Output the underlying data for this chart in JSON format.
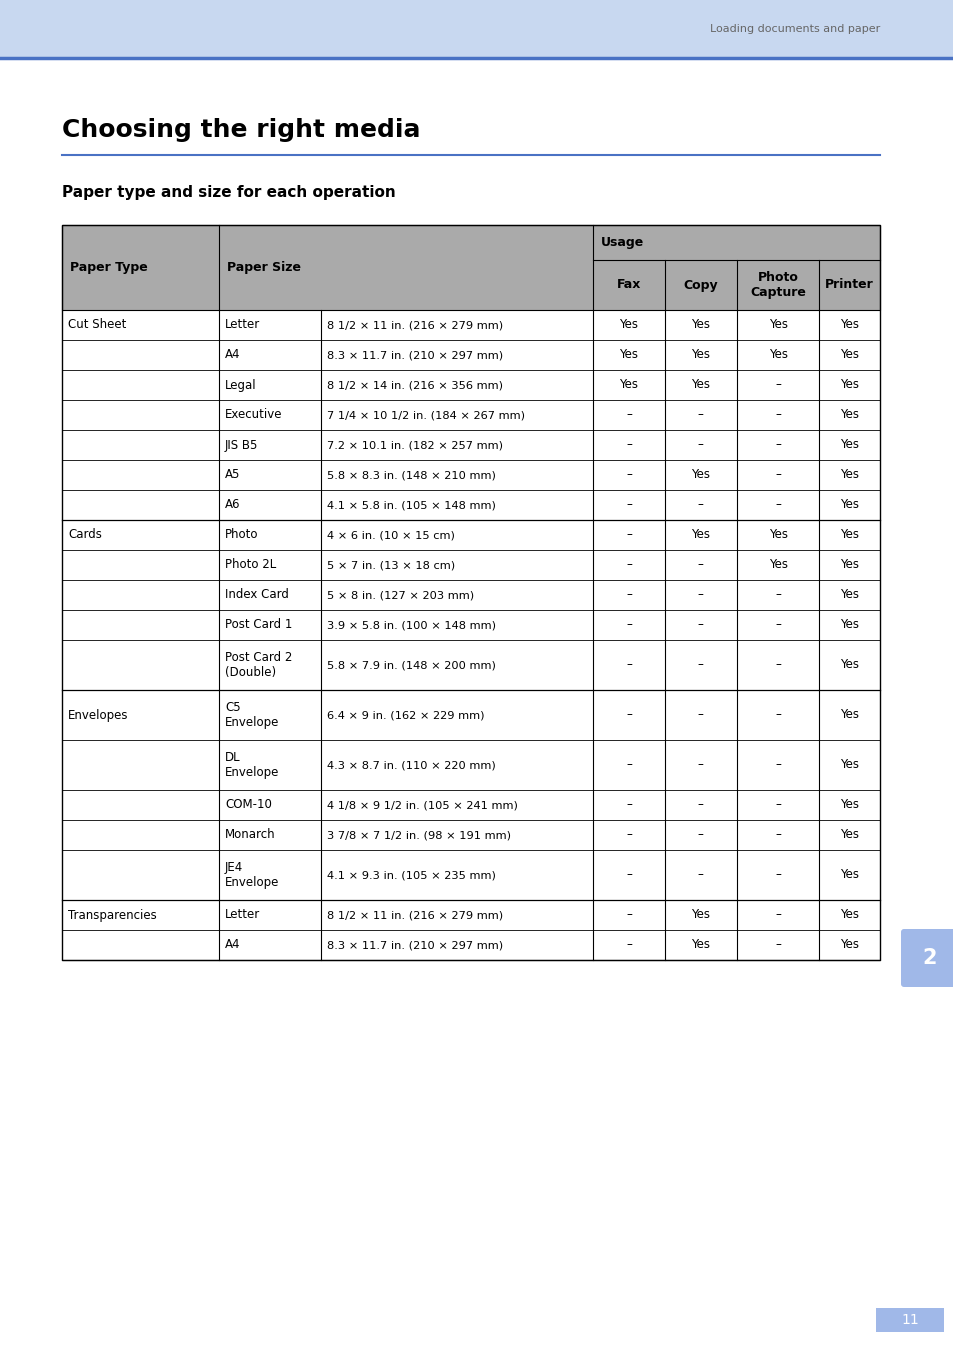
{
  "page_bg": "#ffffff",
  "header_bg": "#c8d8f0",
  "header_line_color": "#4a72c4",
  "header_text": "Loading documents and paper",
  "title": "Choosing the right media",
  "subtitle": "Paper type and size for each operation",
  "tab_label": "2",
  "tab_bg": "#a0b8e8",
  "footer_text": "11",
  "footer_bg": "#a0b8e8",
  "table_header_bg": "#aaaaaa",
  "table_sub_headers": [
    "Fax",
    "Copy",
    "Photo\nCapture",
    "Printer"
  ],
  "rows": [
    [
      "Cut Sheet",
      "Letter",
      "8 1/2 × 11 in. (216 × 279 mm)",
      "Yes",
      "Yes",
      "Yes",
      "Yes"
    ],
    [
      "",
      "A4",
      "8.3 × 11.7 in. (210 × 297 mm)",
      "Yes",
      "Yes",
      "Yes",
      "Yes"
    ],
    [
      "",
      "Legal",
      "8 1/2 × 14 in. (216 × 356 mm)",
      "Yes",
      "Yes",
      "–",
      "Yes"
    ],
    [
      "",
      "Executive",
      "7 1/4 × 10 1/2 in. (184 × 267 mm)",
      "–",
      "–",
      "–",
      "Yes"
    ],
    [
      "",
      "JIS B5",
      "7.2 × 10.1 in. (182 × 257 mm)",
      "–",
      "–",
      "–",
      "Yes"
    ],
    [
      "",
      "A5",
      "5.8 × 8.3 in. (148 × 210 mm)",
      "–",
      "Yes",
      "–",
      "Yes"
    ],
    [
      "",
      "A6",
      "4.1 × 5.8 in. (105 × 148 mm)",
      "–",
      "–",
      "–",
      "Yes"
    ],
    [
      "Cards",
      "Photo",
      "4 × 6 in. (10 × 15 cm)",
      "–",
      "Yes",
      "Yes",
      "Yes"
    ],
    [
      "",
      "Photo 2L",
      "5 × 7 in. (13 × 18 cm)",
      "–",
      "–",
      "Yes",
      "Yes"
    ],
    [
      "",
      "Index Card",
      "5 × 8 in. (127 × 203 mm)",
      "–",
      "–",
      "–",
      "Yes"
    ],
    [
      "",
      "Post Card 1",
      "3.9 × 5.8 in. (100 × 148 mm)",
      "–",
      "–",
      "–",
      "Yes"
    ],
    [
      "",
      "Post Card 2\n(Double)",
      "5.8 × 7.9 in. (148 × 200 mm)",
      "–",
      "–",
      "–",
      "Yes"
    ],
    [
      "Envelopes",
      "C5\nEnvelope",
      "6.4 × 9 in. (162 × 229 mm)",
      "–",
      "–",
      "–",
      "Yes"
    ],
    [
      "",
      "DL\nEnvelope",
      "4.3 × 8.7 in. (110 × 220 mm)",
      "–",
      "–",
      "–",
      "Yes"
    ],
    [
      "",
      "COM-10",
      "4 1/8 × 9 1/2 in. (105 × 241 mm)",
      "–",
      "–",
      "–",
      "Yes"
    ],
    [
      "",
      "Monarch",
      "3 7/8 × 7 1/2 in. (98 × 191 mm)",
      "–",
      "–",
      "–",
      "Yes"
    ],
    [
      "",
      "JE4\nEnvelope",
      "4.1 × 9.3 in. (105 × 235 mm)",
      "–",
      "–",
      "–",
      "Yes"
    ],
    [
      "Transparencies",
      "Letter",
      "8 1/2 × 11 in. (216 × 279 mm)",
      "–",
      "Yes",
      "–",
      "Yes"
    ],
    [
      "",
      "A4",
      "8.3 × 11.7 in. (210 × 297 mm)",
      "–",
      "Yes",
      "–",
      "Yes"
    ]
  ]
}
